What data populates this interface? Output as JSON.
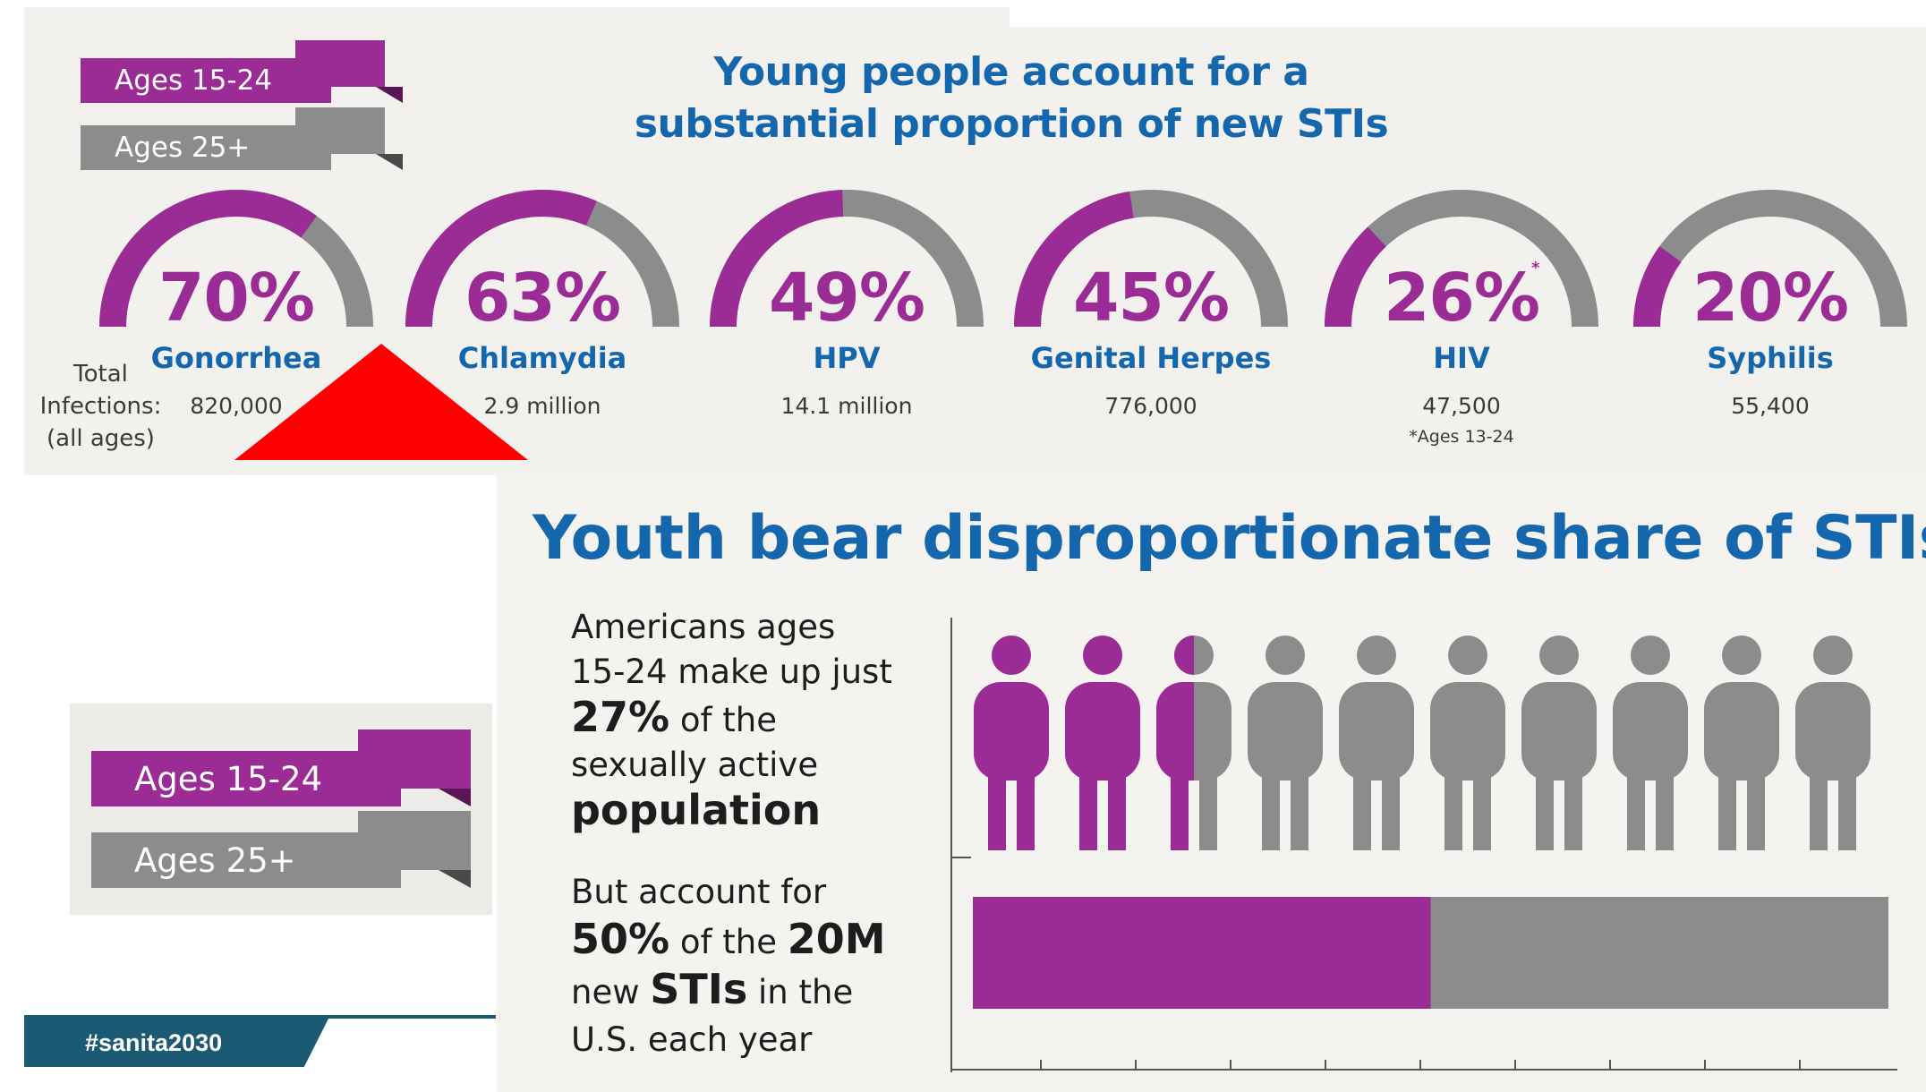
{
  "legend_top": {
    "young": "Ages 15-24",
    "older": "Ages 25+"
  },
  "legend_bottom": {
    "young": "Ages 15-24",
    "older": "Ages 25+"
  },
  "colors": {
    "young": "#9b2c96",
    "older": "#8c8c8c",
    "title_blue": "#1466ad",
    "panel": "#f3f1ed",
    "hashtag_bg": "#1b5a73",
    "alert": "#ff0000"
  },
  "title": {
    "line1": "Young people account for a",
    "line2": "substantial proportion of new STIs"
  },
  "total_label": {
    "line1": "Total",
    "line2": "Infections:",
    "line3": "(all ages)"
  },
  "gauges": [
    {
      "percent_text": "70%",
      "percent": 70,
      "name": "Gonorrhea",
      "total": "820,000",
      "superscript": "",
      "note": ""
    },
    {
      "percent_text": "63%",
      "percent": 63,
      "name": "Chlamydia",
      "total": "2.9 million",
      "superscript": "",
      "note": ""
    },
    {
      "percent_text": "49%",
      "percent": 49,
      "name": "HPV",
      "total": "14.1 million",
      "superscript": "",
      "note": ""
    },
    {
      "percent_text": "45%",
      "percent": 45,
      "name": "Genital Herpes",
      "total": "776,000",
      "superscript": "",
      "note": ""
    },
    {
      "percent_text": "26%",
      "percent": 26,
      "name": "HIV",
      "total": "47,500",
      "superscript": "*",
      "note": "*Ages 13-24"
    },
    {
      "percent_text": "20%",
      "percent": 20,
      "name": "Syphilis",
      "total": "55,400",
      "superscript": "",
      "note": ""
    }
  ],
  "hashtag": "#sanita2030",
  "bottom": {
    "title": "Youth bear disproportionate share of STIs",
    "text1": {
      "a": "Americans ages",
      "b": "15-24 make up just",
      "c_bold": "27%",
      "c_rest": " of the",
      "d": "sexually active",
      "e_bold": "population"
    },
    "text2": {
      "a": "But account for",
      "b_bold1": "50%",
      "b_mid": " of the ",
      "b_bold2": "20M",
      "c_pre": "new ",
      "c_bold": "STIs",
      "c_rest": " in the",
      "d": "U.S. each year"
    }
  },
  "people": {
    "total": 10,
    "young_count": 2.5
  },
  "share_bar": {
    "young_fraction": 0.5
  }
}
